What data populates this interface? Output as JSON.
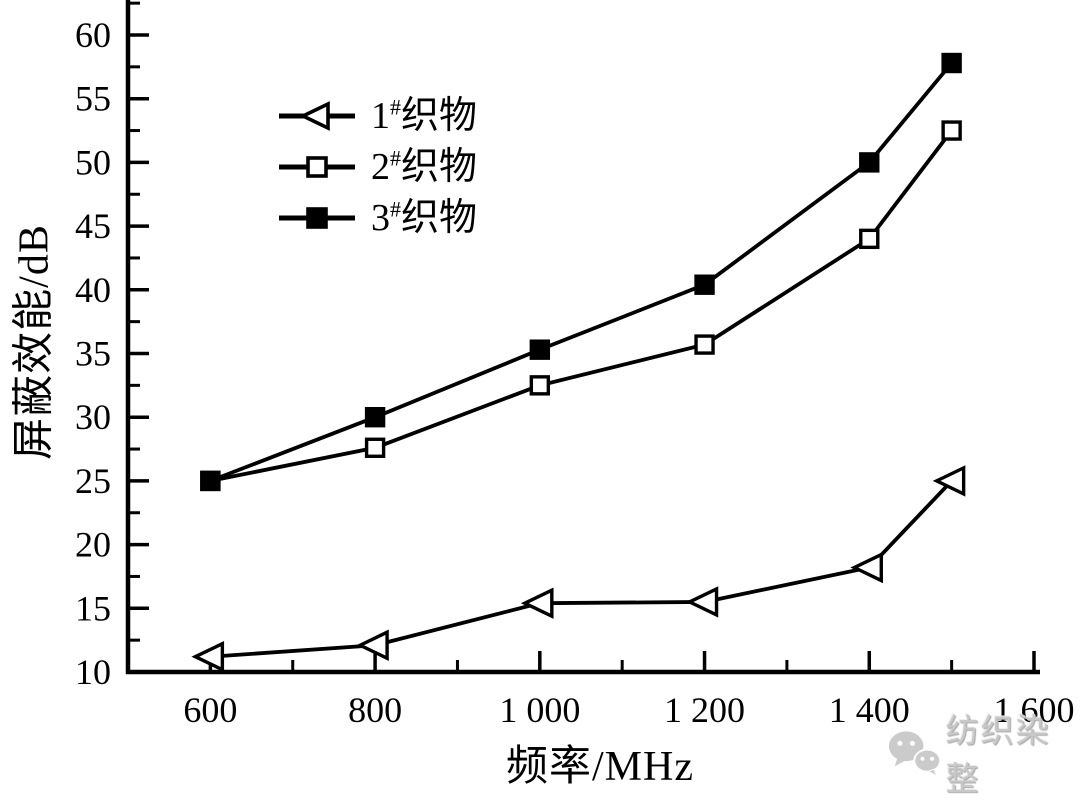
{
  "chart_data": {
    "type": "line",
    "title": "",
    "xlabel": "频率/MHz",
    "ylabel": "屏蔽效能/dB",
    "x": [
      600,
      800,
      1000,
      1200,
      1400,
      1500
    ],
    "series": [
      {
        "name": "1#织物",
        "label_num": "1",
        "label_sup": "#",
        "label_text": "织物",
        "marker": "triangle-left-open",
        "values": [
          11.2,
          12.1,
          15.4,
          15.5,
          18.2,
          25.0
        ]
      },
      {
        "name": "2#织物",
        "label_num": "2",
        "label_sup": "#",
        "label_text": "织物",
        "marker": "square-open",
        "values": [
          25.0,
          27.6,
          32.5,
          35.7,
          44.0,
          52.5
        ]
      },
      {
        "name": "3#织物",
        "label_num": "3",
        "label_sup": "#",
        "label_text": "织物",
        "marker": "square-filled",
        "values": [
          25.0,
          30.0,
          35.3,
          40.4,
          50.0,
          57.8
        ]
      }
    ],
    "xlim": [
      500,
      1600
    ],
    "ylim": [
      10,
      63
    ],
    "x_major_ticks": [
      600,
      800,
      1000,
      1200,
      1400,
      1600
    ],
    "x_tick_labels": [
      "600",
      "800",
      "1 000",
      "1 200",
      "1 400",
      "1 600"
    ],
    "x_minor_ticks": [
      700,
      900,
      1100,
      1300,
      1500
    ],
    "y_major_ticks": [
      10,
      15,
      20,
      25,
      30,
      35,
      40,
      45,
      50,
      55,
      60
    ],
    "y_tick_labels": [
      "10",
      "15",
      "20",
      "25",
      "30",
      "35",
      "40",
      "45",
      "50",
      "55",
      "60"
    ],
    "y_minor_ticks": [
      12.5,
      17.5,
      22.5,
      27.5,
      32.5,
      37.5,
      42.5,
      47.5,
      52.5,
      57.5,
      62.5
    ],
    "grid": false,
    "legend_position": "upper-left-inside",
    "line_color": "#000000",
    "background_color": "#ffffff"
  },
  "watermark": {
    "icon": "wechat-icon",
    "text": "纺织染整",
    "color": "#c8c8c8"
  }
}
